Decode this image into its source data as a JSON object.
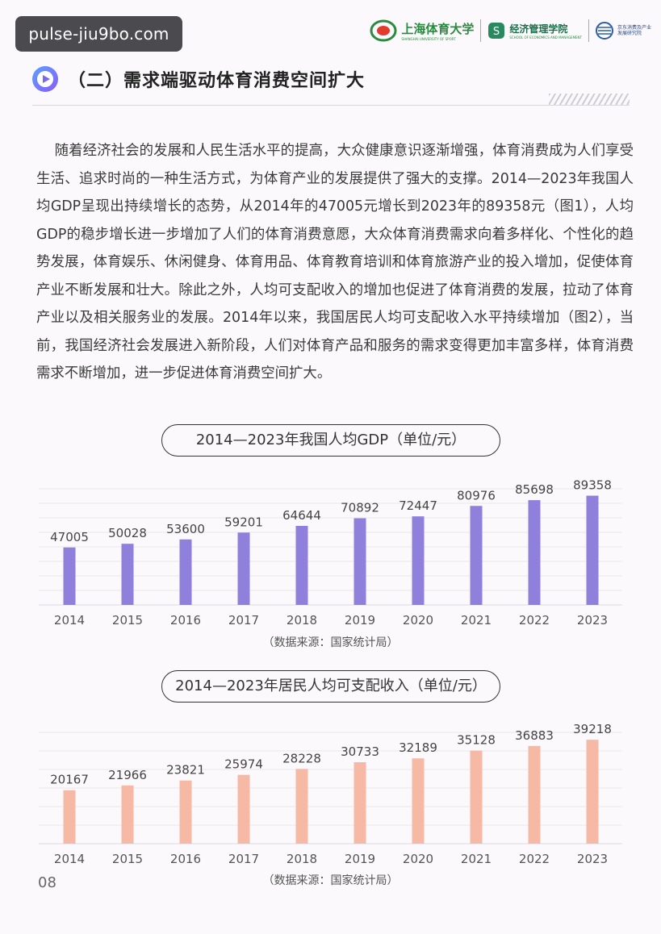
{
  "watermark": "pulse-jiu9bo.com",
  "logos": {
    "university": "上海体育大学",
    "university_en": "SHANGHAI UNIVERSITY OF SPORT",
    "school": "经济管理学院",
    "school_en": "SCHOOL OF ECONOMICS AND MANAGEMENT",
    "institute": "京东消费及产业发展研究院"
  },
  "section": {
    "title": "（二）需求端驱动体育消费空间扩大"
  },
  "paragraph": "    随着经济社会的发展和人民生活水平的提高，大众健康意识逐渐增强，体育消费成为人们享受生活、追求时尚的一种生活方式，为体育产业的发展提供了强大的支撑。2014—2023年我国人均GDP呈现出持续增长的态势，从2014年的47005元增长到2023年的89358元（图1），人均GDP的稳步增长进一步增加了人们的体育消费意愿，大众体育消费需求向着多样化、个性化的趋势发展，体育娱乐、休闲健身、体育用品、体育教育培训和体育旅游产业的投入增加，促使体育产业不断发展和壮大。除此之外，人均可支配收入的增加也促进了体育消费的发展，拉动了体育产业以及相关服务业的发展。2014年以来，我国居民人均可支配收入水平持续增加（图2），当前，我国经济社会发展进入新阶段，人们对体育产品和服务的需求变得更加丰富多样，体育消费需求不断增加，进一步促进体育消费空间扩大。",
  "page_number": "08",
  "colors": {
    "gdp_bar": "#8f80dc",
    "income_bar": "#f6b9a6",
    "grid": "#e4e0e6"
  },
  "chart_data": [
    {
      "type": "bar",
      "title": "2014—2023年我国人均GDP（单位/元）",
      "categories": [
        "2014",
        "2015",
        "2016",
        "2017",
        "2018",
        "2019",
        "2020",
        "2021",
        "2022",
        "2023"
      ],
      "values": [
        47005,
        50028,
        53600,
        59201,
        64644,
        70892,
        72447,
        80976,
        85698,
        89358
      ],
      "source": "（数据来源：国家统计局）",
      "ylim": [
        0,
        95000
      ],
      "grid": true
    },
    {
      "type": "bar",
      "title": "2014—2023年居民人均可支配收入（单位/元）",
      "categories": [
        "2014",
        "2015",
        "2016",
        "2017",
        "2018",
        "2019",
        "2020",
        "2021",
        "2022",
        "2023"
      ],
      "values": [
        20167,
        21966,
        23821,
        25974,
        28228,
        30733,
        32189,
        35128,
        36883,
        39218
      ],
      "source": "（数据来源：国家统计局）",
      "ylim": [
        0,
        42000
      ],
      "grid": true
    }
  ]
}
